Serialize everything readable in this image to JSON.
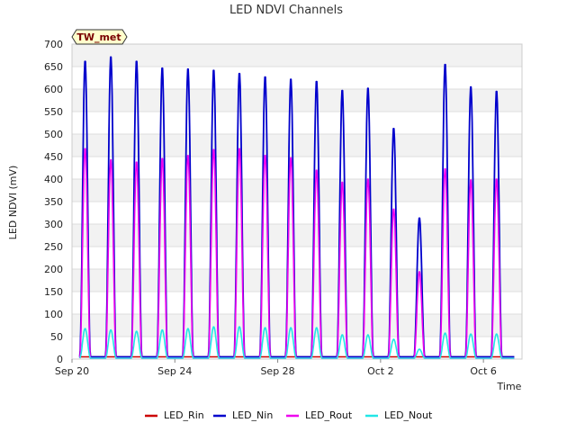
{
  "chart_data": {
    "type": "line",
    "title": "LED NDVI Channels",
    "xlabel": "Time",
    "ylabel": "LED NDVI (mV)",
    "site_label": "TW_met",
    "ylim": [
      0,
      700
    ],
    "yticks": [
      0,
      50,
      100,
      150,
      200,
      250,
      300,
      350,
      400,
      450,
      500,
      550,
      600,
      650,
      700
    ],
    "x_range_days": [
      0,
      17.5
    ],
    "xticks": [
      {
        "day": 0,
        "label": "Sep 20"
      },
      {
        "day": 4,
        "label": "Sep 24"
      },
      {
        "day": 8,
        "label": "Sep 28"
      },
      {
        "day": 12,
        "label": "Oct 2"
      },
      {
        "day": 16,
        "label": "Oct 6"
      }
    ],
    "grid": true,
    "band_colors": [
      "#f2f2f2",
      "#ffffff"
    ],
    "days": [
      "Sep 20",
      "Sep 21",
      "Sep 22",
      "Sep 23",
      "Sep 24",
      "Sep 25",
      "Sep 26",
      "Sep 27",
      "Sep 28",
      "Sep 29",
      "Sep 30",
      "Oct 1",
      "Oct 2",
      "Oct 3",
      "Oct 4",
      "Oct 5",
      "Oct 6"
    ],
    "series": [
      {
        "name": "LED_Rin",
        "color": "#cc0000",
        "night": 5,
        "daily_peak": [
          0,
          0,
          0,
          0,
          0,
          0,
          0,
          0,
          0,
          0,
          0,
          0,
          0,
          0,
          0,
          0,
          0
        ]
      },
      {
        "name": "LED_Nin",
        "color": "#0000cc",
        "night": 5,
        "daily_peak": [
          665,
          675,
          665,
          650,
          648,
          645,
          638,
          630,
          625,
          620,
          600,
          605,
          515,
          315,
          658,
          608,
          598
        ]
      },
      {
        "name": "LED_Rout",
        "color": "#ee00ee",
        "night": 2,
        "daily_peak": [
          470,
          445,
          440,
          448,
          455,
          468,
          470,
          455,
          450,
          422,
          395,
          402,
          335,
          195,
          425,
          400,
          402
        ]
      },
      {
        "name": "LED_Nout",
        "color": "#22e6e6",
        "night": 2,
        "daily_peak": [
          68,
          65,
          62,
          65,
          68,
          72,
          72,
          70,
          70,
          70,
          54,
          54,
          44,
          22,
          58,
          56,
          56
        ]
      }
    ],
    "legend": {
      "position": "bottom"
    }
  }
}
